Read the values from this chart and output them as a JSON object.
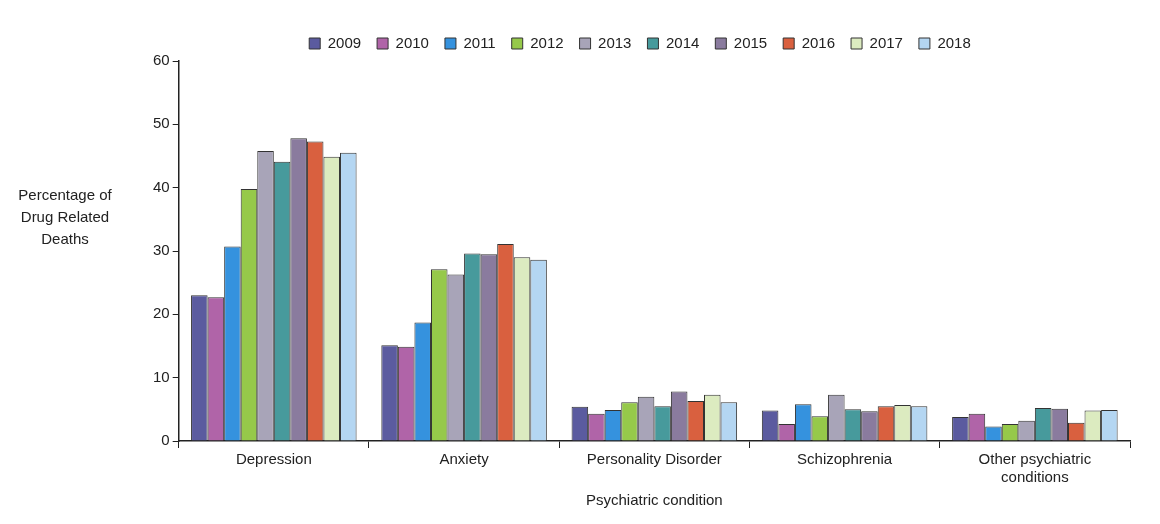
{
  "chart_data": {
    "type": "bar",
    "xlabel": "Psychiatric condition",
    "ylabel": "Percentage of Drug Related Deaths",
    "categories": [
      "Depression",
      "Anxiety",
      "Personality Disorder",
      "Schizophrenia",
      "Other psychiatric conditions"
    ],
    "series": [
      {
        "name": "2009",
        "color": "#5b5b9f",
        "values": [
          23.0,
          15.1,
          5.4,
          4.8,
          3.8
        ]
      },
      {
        "name": "2010",
        "color": "#b064a8",
        "values": [
          22.7,
          14.9,
          4.3,
          2.7,
          4.3
        ]
      },
      {
        "name": "2011",
        "color": "#3592de",
        "values": [
          30.7,
          18.7,
          4.9,
          5.8,
          2.3
        ]
      },
      {
        "name": "2012",
        "color": "#96c94a",
        "values": [
          39.8,
          27.1,
          6.1,
          3.9,
          2.7
        ]
      },
      {
        "name": "2013",
        "color": "#a8a4b8",
        "values": [
          45.8,
          26.3,
          7.0,
          7.3,
          3.2
        ]
      },
      {
        "name": "2014",
        "color": "#479a9c",
        "values": [
          44.1,
          29.6,
          5.5,
          5.0,
          5.2
        ]
      },
      {
        "name": "2015",
        "color": "#8a7b9e",
        "values": [
          47.8,
          29.5,
          7.8,
          4.7,
          5.1
        ]
      },
      {
        "name": "2016",
        "color": "#d9603f",
        "values": [
          47.3,
          31.1,
          6.3,
          5.5,
          2.9
        ]
      },
      {
        "name": "2017",
        "color": "#dcebc0",
        "values": [
          44.9,
          29.0,
          7.3,
          5.7,
          4.8
        ]
      },
      {
        "name": "2018",
        "color": "#b4d6f2",
        "values": [
          45.5,
          28.6,
          6.1,
          5.5,
          4.9
        ]
      }
    ],
    "ylim": [
      0,
      60
    ],
    "yticks": [
      0,
      10,
      20,
      30,
      40,
      50,
      60
    ],
    "grid": false,
    "legend": "top"
  }
}
